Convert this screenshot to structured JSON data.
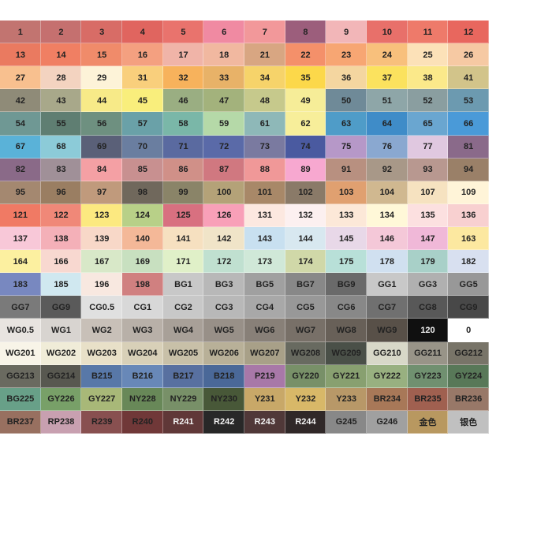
{
  "swatches": {
    "rows": [
      [
        {
          "label": "1",
          "color": "#c27470"
        },
        {
          "label": "2",
          "color": "#c5706f"
        },
        {
          "label": "3",
          "color": "#d86c66"
        },
        {
          "label": "4",
          "color": "#e0655f"
        },
        {
          "label": "5",
          "color": "#e9736d"
        },
        {
          "label": "6",
          "color": "#f08aa2"
        },
        {
          "label": "7",
          "color": "#f2989a"
        },
        {
          "label": "8",
          "color": "#9c5e7c"
        },
        {
          "label": "9",
          "color": "#f2b6b8"
        },
        {
          "label": "10",
          "color": "#e8706a"
        },
        {
          "label": "11",
          "color": "#ee7a6a"
        },
        {
          "label": "12",
          "color": "#e8675e"
        }
      ],
      [
        {
          "label": "13",
          "color": "#ea7a60"
        },
        {
          "label": "14",
          "color": "#f07f63"
        },
        {
          "label": "15",
          "color": "#f08b6a"
        },
        {
          "label": "16",
          "color": "#f4a080"
        },
        {
          "label": "17",
          "color": "#f0b4a8"
        },
        {
          "label": "18",
          "color": "#f1b8a0"
        },
        {
          "label": "21",
          "color": "#d8a682"
        },
        {
          "label": "22",
          "color": "#f4906a"
        },
        {
          "label": "23",
          "color": "#f7a673"
        },
        {
          "label": "24",
          "color": "#f8c07c"
        },
        {
          "label": "25",
          "color": "#fce1b8"
        },
        {
          "label": "26",
          "color": "#f6c9a3"
        }
      ],
      [
        {
          "label": "27",
          "color": "#f8c08f"
        },
        {
          "label": "28",
          "color": "#f3d3c0"
        },
        {
          "label": "29",
          "color": "#fdf3d8"
        },
        {
          "label": "31",
          "color": "#f9cf7c"
        },
        {
          "label": "32",
          "color": "#f7b25c"
        },
        {
          "label": "33",
          "color": "#e8b268"
        },
        {
          "label": "34",
          "color": "#f6d36a"
        },
        {
          "label": "35",
          "color": "#fcd84a"
        },
        {
          "label": "36",
          "color": "#f4d6a0"
        },
        {
          "label": "37",
          "color": "#fbe25e"
        },
        {
          "label": "38",
          "color": "#fbe98a"
        },
        {
          "label": "41",
          "color": "#d2c48a"
        }
      ],
      [
        {
          "label": "42",
          "color": "#8f8b78"
        },
        {
          "label": "43",
          "color": "#a8a88a"
        },
        {
          "label": "44",
          "color": "#f7ea88"
        },
        {
          "label": "45",
          "color": "#f9ee7c"
        },
        {
          "label": "46",
          "color": "#9aae82"
        },
        {
          "label": "47",
          "color": "#a3b27c"
        },
        {
          "label": "48",
          "color": "#c6c98c"
        },
        {
          "label": "49",
          "color": "#f6ed98"
        },
        {
          "label": "50",
          "color": "#6f8a98"
        },
        {
          "label": "51",
          "color": "#8ea6a8"
        },
        {
          "label": "52",
          "color": "#8a9ea0"
        },
        {
          "label": "53",
          "color": "#6c9ab0"
        }
      ],
      [
        {
          "label": "54",
          "color": "#6f9894"
        },
        {
          "label": "55",
          "color": "#5f7e72"
        },
        {
          "label": "56",
          "color": "#6e9080"
        },
        {
          "label": "57",
          "color": "#6aa1a8"
        },
        {
          "label": "58",
          "color": "#7ab7a8"
        },
        {
          "label": "59",
          "color": "#b5d9a8"
        },
        {
          "label": "61",
          "color": "#8eb8b8"
        },
        {
          "label": "62",
          "color": "#f7ee9a"
        },
        {
          "label": "63",
          "color": "#4f9cc8"
        },
        {
          "label": "64",
          "color": "#3f8cc8"
        },
        {
          "label": "65",
          "color": "#6aa6d0"
        },
        {
          "label": "66",
          "color": "#4a9ad8"
        }
      ],
      [
        {
          "label": "67",
          "color": "#5ab2d8"
        },
        {
          "label": "68",
          "color": "#8ccbd8"
        },
        {
          "label": "69",
          "color": "#5a6078"
        },
        {
          "label": "70",
          "color": "#6a7ea0"
        },
        {
          "label": "71",
          "color": "#5a6aa0"
        },
        {
          "label": "72",
          "color": "#5a6aa8"
        },
        {
          "label": "73",
          "color": "#7a7aa0"
        },
        {
          "label": "74",
          "color": "#4a5aa0"
        },
        {
          "label": "75",
          "color": "#b698c8"
        },
        {
          "label": "76",
          "color": "#8aa8d0"
        },
        {
          "label": "77",
          "color": "#e0c8e0"
        },
        {
          "label": "81",
          "color": "#8a6a8a"
        }
      ],
      [
        {
          "label": "82",
          "color": "#8a6a88"
        },
        {
          "label": "83",
          "color": "#a09098"
        },
        {
          "label": "84",
          "color": "#f4a0a4"
        },
        {
          "label": "85",
          "color": "#c89090"
        },
        {
          "label": "86",
          "color": "#d09088"
        },
        {
          "label": "87",
          "color": "#d07880"
        },
        {
          "label": "88",
          "color": "#f09898"
        },
        {
          "label": "89",
          "color": "#f7a8d0"
        },
        {
          "label": "91",
          "color": "#b89080"
        },
        {
          "label": "92",
          "color": "#a89888"
        },
        {
          "label": "93",
          "color": "#b89890"
        },
        {
          "label": "94",
          "color": "#9a8068"
        }
      ],
      [
        {
          "label": "95",
          "color": "#a48870"
        },
        {
          "label": "96",
          "color": "#9a7e62"
        },
        {
          "label": "97",
          "color": "#c09a7c"
        },
        {
          "label": "98",
          "color": "#70685c"
        },
        {
          "label": "99",
          "color": "#8a8468"
        },
        {
          "label": "100",
          "color": "#b4a278"
        },
        {
          "label": "101",
          "color": "#a88868"
        },
        {
          "label": "102",
          "color": "#8a7a68"
        },
        {
          "label": "103",
          "color": "#e0a070"
        },
        {
          "label": "104",
          "color": "#d0b890"
        },
        {
          "label": "107",
          "color": "#f6e2c0"
        },
        {
          "label": "109",
          "color": "#fff4d8"
        }
      ],
      [
        {
          "label": "121",
          "color": "#f07a64"
        },
        {
          "label": "122",
          "color": "#f08878"
        },
        {
          "label": "123",
          "color": "#fce980"
        },
        {
          "label": "124",
          "color": "#b8d088"
        },
        {
          "label": "125",
          "color": "#d87080"
        },
        {
          "label": "126",
          "color": "#f8a0b8"
        },
        {
          "label": "131",
          "color": "#fce8e0"
        },
        {
          "label": "132",
          "color": "#fcf0f0"
        },
        {
          "label": "133",
          "color": "#fce8d8"
        },
        {
          "label": "134",
          "color": "#fff8d8"
        },
        {
          "label": "135",
          "color": "#fce0e0"
        },
        {
          "label": "136",
          "color": "#f8d0d0"
        }
      ],
      [
        {
          "label": "137",
          "color": "#f8c8d8"
        },
        {
          "label": "138",
          "color": "#f4b0b8"
        },
        {
          "label": "139",
          "color": "#f8d8c8"
        },
        {
          "label": "140",
          "color": "#f4b898"
        },
        {
          "label": "141",
          "color": "#f6e0c0"
        },
        {
          "label": "142",
          "color": "#f0e4c8"
        },
        {
          "label": "143",
          "color": "#c8e0f0"
        },
        {
          "label": "144",
          "color": "#d8e8f0"
        },
        {
          "label": "145",
          "color": "#e8d8e8"
        },
        {
          "label": "146",
          "color": "#f4c8d8"
        },
        {
          "label": "147",
          "color": "#f0b8d8"
        },
        {
          "label": "163",
          "color": "#fce8a0"
        }
      ],
      [
        {
          "label": "164",
          "color": "#fcf0a0"
        },
        {
          "label": "166",
          "color": "#f8d8d0"
        },
        {
          "label": "167",
          "color": "#d8e8c8"
        },
        {
          "label": "169",
          "color": "#c8e0c0"
        },
        {
          "label": "171",
          "color": "#e0f0c8"
        },
        {
          "label": "172",
          "color": "#c0e0d0"
        },
        {
          "label": "173",
          "color": "#d0e8d8"
        },
        {
          "label": "174",
          "color": "#d0d8a8"
        },
        {
          "label": "175",
          "color": "#b8e0d8"
        },
        {
          "label": "178",
          "color": "#d0e0f0"
        },
        {
          "label": "179",
          "color": "#a8d0c8"
        },
        {
          "label": "182",
          "color": "#d8e0f0"
        }
      ],
      [
        {
          "label": "183",
          "color": "#7888c0"
        },
        {
          "label": "185",
          "color": "#d0e8f0"
        },
        {
          "label": "196",
          "color": "#f8e8e0"
        },
        {
          "label": "198",
          "color": "#d08080"
        },
        {
          "label": "BG1",
          "color": "#c8c8c8"
        },
        {
          "label": "BG3",
          "color": "#b8b8b8"
        },
        {
          "label": "BG5",
          "color": "#a0a0a0"
        },
        {
          "label": "BG7",
          "color": "#888888"
        },
        {
          "label": "BG9",
          "color": "#6a6a6a"
        },
        {
          "label": "GG1",
          "color": "#c8c8c8"
        },
        {
          "label": "GG3",
          "color": "#b0b0b0"
        },
        {
          "label": "GG5",
          "color": "#989898"
        }
      ],
      [
        {
          "label": "GG7",
          "color": "#7a7a7a"
        },
        {
          "label": "GG9",
          "color": "#5a5a5a"
        },
        {
          "label": "CG0.5",
          "color": "#e0e0e0"
        },
        {
          "label": "CG1",
          "color": "#d8d8d8"
        },
        {
          "label": "CG2",
          "color": "#c8c8c8"
        },
        {
          "label": "CG3",
          "color": "#b8b8b8"
        },
        {
          "label": "CG4",
          "color": "#a8a8a8"
        },
        {
          "label": "CG5",
          "color": "#989898"
        },
        {
          "label": "CG6",
          "color": "#888888"
        },
        {
          "label": "CG7",
          "color": "#707070"
        },
        {
          "label": "CG8",
          "color": "#585858"
        },
        {
          "label": "CG9",
          "color": "#484848"
        }
      ],
      [
        {
          "label": "WG0.5",
          "color": "#e8e4e0"
        },
        {
          "label": "WG1",
          "color": "#d8d4d0"
        },
        {
          "label": "WG2",
          "color": "#c8c0b8"
        },
        {
          "label": "WG3",
          "color": "#b8b0a8"
        },
        {
          "label": "WG4",
          "color": "#a8a098"
        },
        {
          "label": "WG5",
          "color": "#989088"
        },
        {
          "label": "WG6",
          "color": "#888078"
        },
        {
          "label": "WG7",
          "color": "#787068"
        },
        {
          "label": "WG8",
          "color": "#686058"
        },
        {
          "label": "WG9",
          "color": "#585048"
        },
        {
          "label": "120",
          "color": "#101010"
        },
        {
          "label": "0",
          "color": "#ffffff"
        }
      ],
      [
        {
          "label": "WG201",
          "color": "#f8f4e8"
        },
        {
          "label": "WG202",
          "color": "#f0ecd8"
        },
        {
          "label": "WG203",
          "color": "#e8e0c8"
        },
        {
          "label": "WG204",
          "color": "#d8d0b8"
        },
        {
          "label": "WG205",
          "color": "#c8c0a8"
        },
        {
          "label": "WG206",
          "color": "#b8b098"
        },
        {
          "label": "WG207",
          "color": "#a8a088"
        },
        {
          "label": "WG208",
          "color": "#686a60"
        },
        {
          "label": "WG209",
          "color": "#4a5048"
        },
        {
          "label": "GG210",
          "color": "#d8d8c8"
        },
        {
          "label": "GG211",
          "color": "#989488"
        },
        {
          "label": "GG212",
          "color": "#787468"
        }
      ],
      [
        {
          "label": "GG213",
          "color": "#6a6a60"
        },
        {
          "label": "GG214",
          "color": "#585850"
        },
        {
          "label": "B215",
          "color": "#5878a8"
        },
        {
          "label": "B216",
          "color": "#6888b8"
        },
        {
          "label": "B217",
          "color": "#5870a0"
        },
        {
          "label": "B218",
          "color": "#4a6898"
        },
        {
          "label": "P219",
          "color": "#a878a8"
        },
        {
          "label": "GY220",
          "color": "#789068"
        },
        {
          "label": "GY221",
          "color": "#88a070"
        },
        {
          "label": "GY222",
          "color": "#98b080"
        },
        {
          "label": "GY223",
          "color": "#709070"
        },
        {
          "label": "GY224",
          "color": "#587858"
        }
      ],
      [
        {
          "label": "BG225",
          "color": "#68a088"
        },
        {
          "label": "GY226",
          "color": "#78a068"
        },
        {
          "label": "GY227",
          "color": "#a8b878"
        },
        {
          "label": "NY228",
          "color": "#688858"
        },
        {
          "label": "NY229",
          "color": "#789068"
        },
        {
          "label": "NY230",
          "color": "#485838"
        },
        {
          "label": "Y231",
          "color": "#c8a868"
        },
        {
          "label": "Y232",
          "color": "#d8b868"
        },
        {
          "label": "Y233",
          "color": "#b89868"
        },
        {
          "label": "BR234",
          "color": "#a87858"
        },
        {
          "label": "BR235",
          "color": "#a06050"
        },
        {
          "label": "BR236",
          "color": "#987868"
        }
      ],
      [
        {
          "label": "BR237",
          "color": "#987060"
        },
        {
          "label": "RP238",
          "color": "#c8a0b0"
        },
        {
          "label": "R239",
          "color": "#885050"
        },
        {
          "label": "R240",
          "color": "#703838"
        },
        {
          "label": "R241",
          "color": "#603838"
        },
        {
          "label": "R242",
          "color": "#282828"
        },
        {
          "label": "R243",
          "color": "#503838"
        },
        {
          "label": "R244",
          "color": "#302828"
        },
        {
          "label": "G245",
          "color": "#888888"
        },
        {
          "label": "G246",
          "color": "#a0a0a0"
        },
        {
          "label": "金色",
          "color": "#b89860"
        },
        {
          "label": "银色",
          "color": "#c0c0c0"
        }
      ]
    ]
  }
}
